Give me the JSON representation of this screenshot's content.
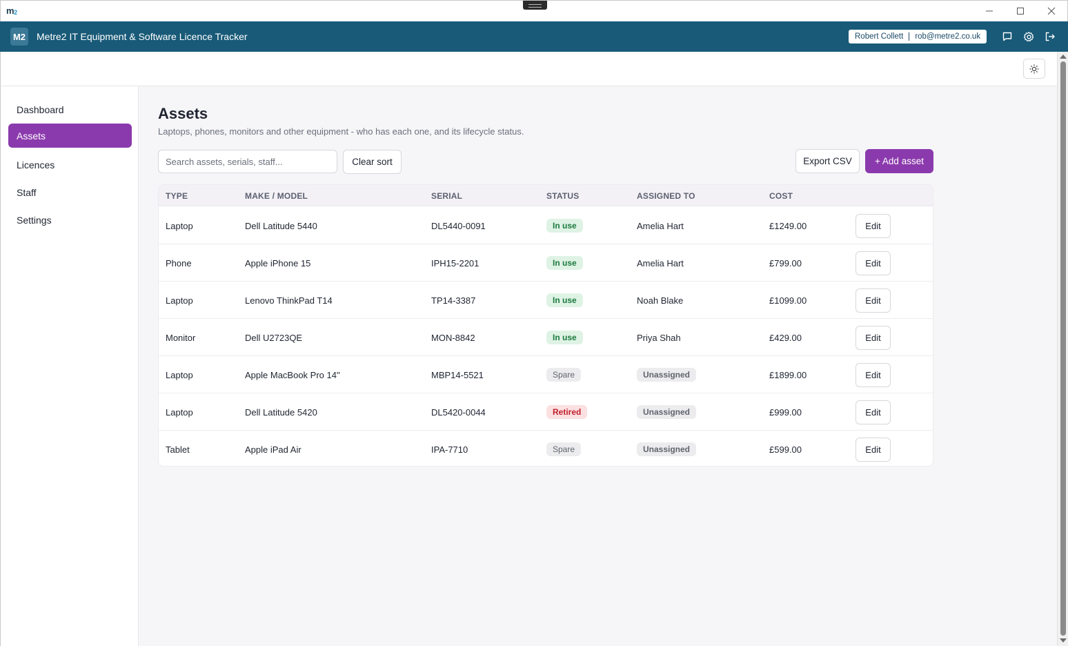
{
  "window": {
    "logo_text": "m",
    "logo_sub": "2"
  },
  "app": {
    "badge": "M2",
    "title": "Metre2 IT Equipment & Software Licence Tracker",
    "user_name": "Robert Collett",
    "user_email": "rob@metre2.co.uk"
  },
  "sidebar": {
    "items": [
      {
        "label": "Dashboard",
        "active": false
      },
      {
        "label": "Assets",
        "active": true
      },
      {
        "label": "Licences",
        "active": false
      },
      {
        "label": "Staff",
        "active": false
      },
      {
        "label": "Settings",
        "active": false
      }
    ]
  },
  "page": {
    "title": "Assets",
    "subtitle": "Laptops, phones, monitors and other equipment - who has each one, and its lifecycle status.",
    "search_placeholder": "Search assets, serials, staff...",
    "clear_sort_label": "Clear sort",
    "export_label": "Export CSV",
    "add_label": "+ Add asset"
  },
  "table": {
    "headers": [
      "TYPE",
      "MAKE / MODEL",
      "SERIAL",
      "STATUS",
      "ASSIGNED TO",
      "COST"
    ],
    "edit_label": "Edit",
    "rows": [
      {
        "type": "Laptop",
        "model": "Dell Latitude 5440",
        "serial": "DL5440-0091",
        "status": "In use",
        "status_kind": "inuse",
        "assigned": "Amelia Hart",
        "assigned_kind": "person",
        "cost": "£1249.00"
      },
      {
        "type": "Phone",
        "model": "Apple iPhone 15",
        "serial": "IPH15-2201",
        "status": "In use",
        "status_kind": "inuse",
        "assigned": "Amelia Hart",
        "assigned_kind": "person",
        "cost": "£799.00"
      },
      {
        "type": "Laptop",
        "model": "Lenovo ThinkPad T14",
        "serial": "TP14-3387",
        "status": "In use",
        "status_kind": "inuse",
        "assigned": "Noah Blake",
        "assigned_kind": "person",
        "cost": "£1099.00"
      },
      {
        "type": "Monitor",
        "model": "Dell U2723QE",
        "serial": "MON-8842",
        "status": "In use",
        "status_kind": "inuse",
        "assigned": "Priya Shah",
        "assigned_kind": "person",
        "cost": "£429.00"
      },
      {
        "type": "Laptop",
        "model": "Apple MacBook Pro 14\"",
        "serial": "MBP14-5521",
        "status": "Spare",
        "status_kind": "spare",
        "assigned": "Unassigned",
        "assigned_kind": "unassigned",
        "cost": "£1899.00"
      },
      {
        "type": "Laptop",
        "model": "Dell Latitude 5420",
        "serial": "DL5420-0044",
        "status": "Retired",
        "status_kind": "retired",
        "assigned": "Unassigned",
        "assigned_kind": "unassigned",
        "cost": "£999.00"
      },
      {
        "type": "Tablet",
        "model": "Apple iPad Air",
        "serial": "IPA-7710",
        "status": "Spare",
        "status_kind": "spare",
        "assigned": "Unassigned",
        "assigned_kind": "unassigned",
        "cost": "£599.00"
      }
    ]
  },
  "colors": {
    "header_bg": "#185a78",
    "accent": "#8b3aad",
    "status_inuse": "#1c7a3e",
    "status_retired": "#c2202c"
  },
  "icons": {
    "window": [
      "minimize-icon",
      "maximize-icon",
      "close-icon"
    ],
    "header": [
      "chat-icon",
      "gear-icon",
      "logout-icon"
    ],
    "toolbar": [
      "theme-sun-icon"
    ]
  }
}
